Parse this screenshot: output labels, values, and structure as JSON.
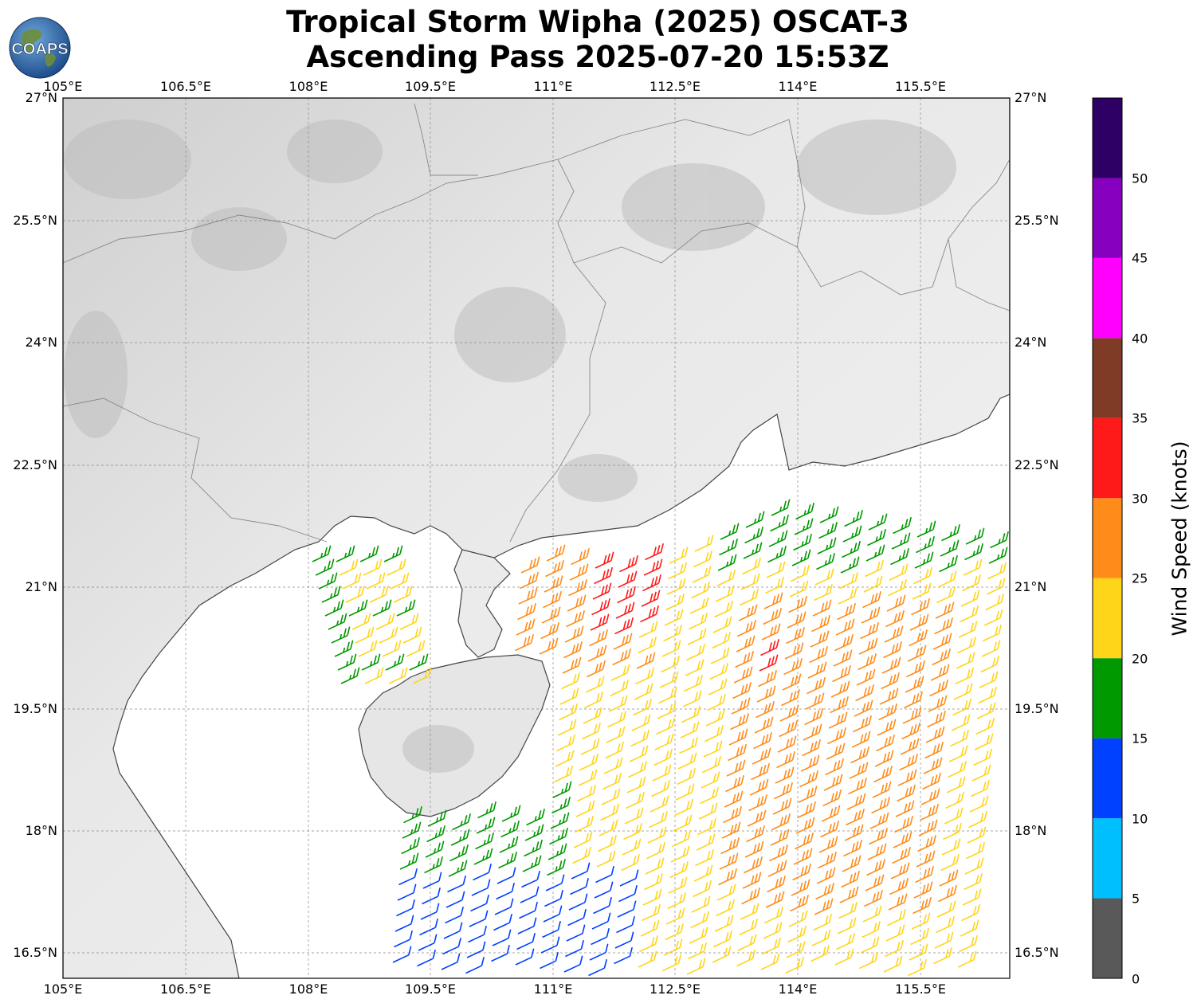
{
  "title": {
    "line1": "Tropical Storm Wipha (2025) OSCAT-3",
    "line2": "Ascending Pass 2025-07-20 15:53Z"
  },
  "logo": {
    "text": "COAPS"
  },
  "map": {
    "lon_ticks": [
      "105°E",
      "106.5°E",
      "108°E",
      "109.5°E",
      "111°E",
      "112.5°E",
      "114°E",
      "115.5°E"
    ],
    "lat_ticks_left": [
      "27°N",
      "25.5°N",
      "24°N",
      "22.5°N",
      "21°N",
      "19.5°N",
      "18°N",
      "16.5°N"
    ],
    "lat_ticks_right": [
      "27°N",
      "25.5°N",
      "24°N",
      "22.5°N",
      "21°N",
      "19.5°N",
      "18°N",
      "16.5°N"
    ],
    "lon_range": [
      105,
      116.6
    ],
    "lat_range": [
      16.3,
      27
    ],
    "gridlines": true,
    "background": "grayscale topography"
  },
  "colorbar": {
    "label": "Wind Speed (knots)",
    "ticks": [
      "0",
      "5",
      "10",
      "15",
      "20",
      "25",
      "30",
      "35",
      "40",
      "45",
      "50"
    ],
    "bins": [
      {
        "from": 0,
        "to": 5,
        "color": "#595959"
      },
      {
        "from": 5,
        "to": 10,
        "color": "#00bfff"
      },
      {
        "from": 10,
        "to": 15,
        "color": "#0040ff"
      },
      {
        "from": 15,
        "to": 20,
        "color": "#009900"
      },
      {
        "from": 20,
        "to": 25,
        "color": "#ffd51a"
      },
      {
        "from": 25,
        "to": 30,
        "color": "#ff8c1a"
      },
      {
        "from": 30,
        "to": 35,
        "color": "#ff1a1a"
      },
      {
        "from": 35,
        "to": 40,
        "color": "#7f3b26"
      },
      {
        "from": 40,
        "to": 45,
        "color": "#ff00ff"
      },
      {
        "from": 45,
        "to": 50,
        "color": "#8800bf"
      },
      {
        "from": 50,
        "to": 55,
        "color": "#2e0066"
      }
    ]
  }
}
